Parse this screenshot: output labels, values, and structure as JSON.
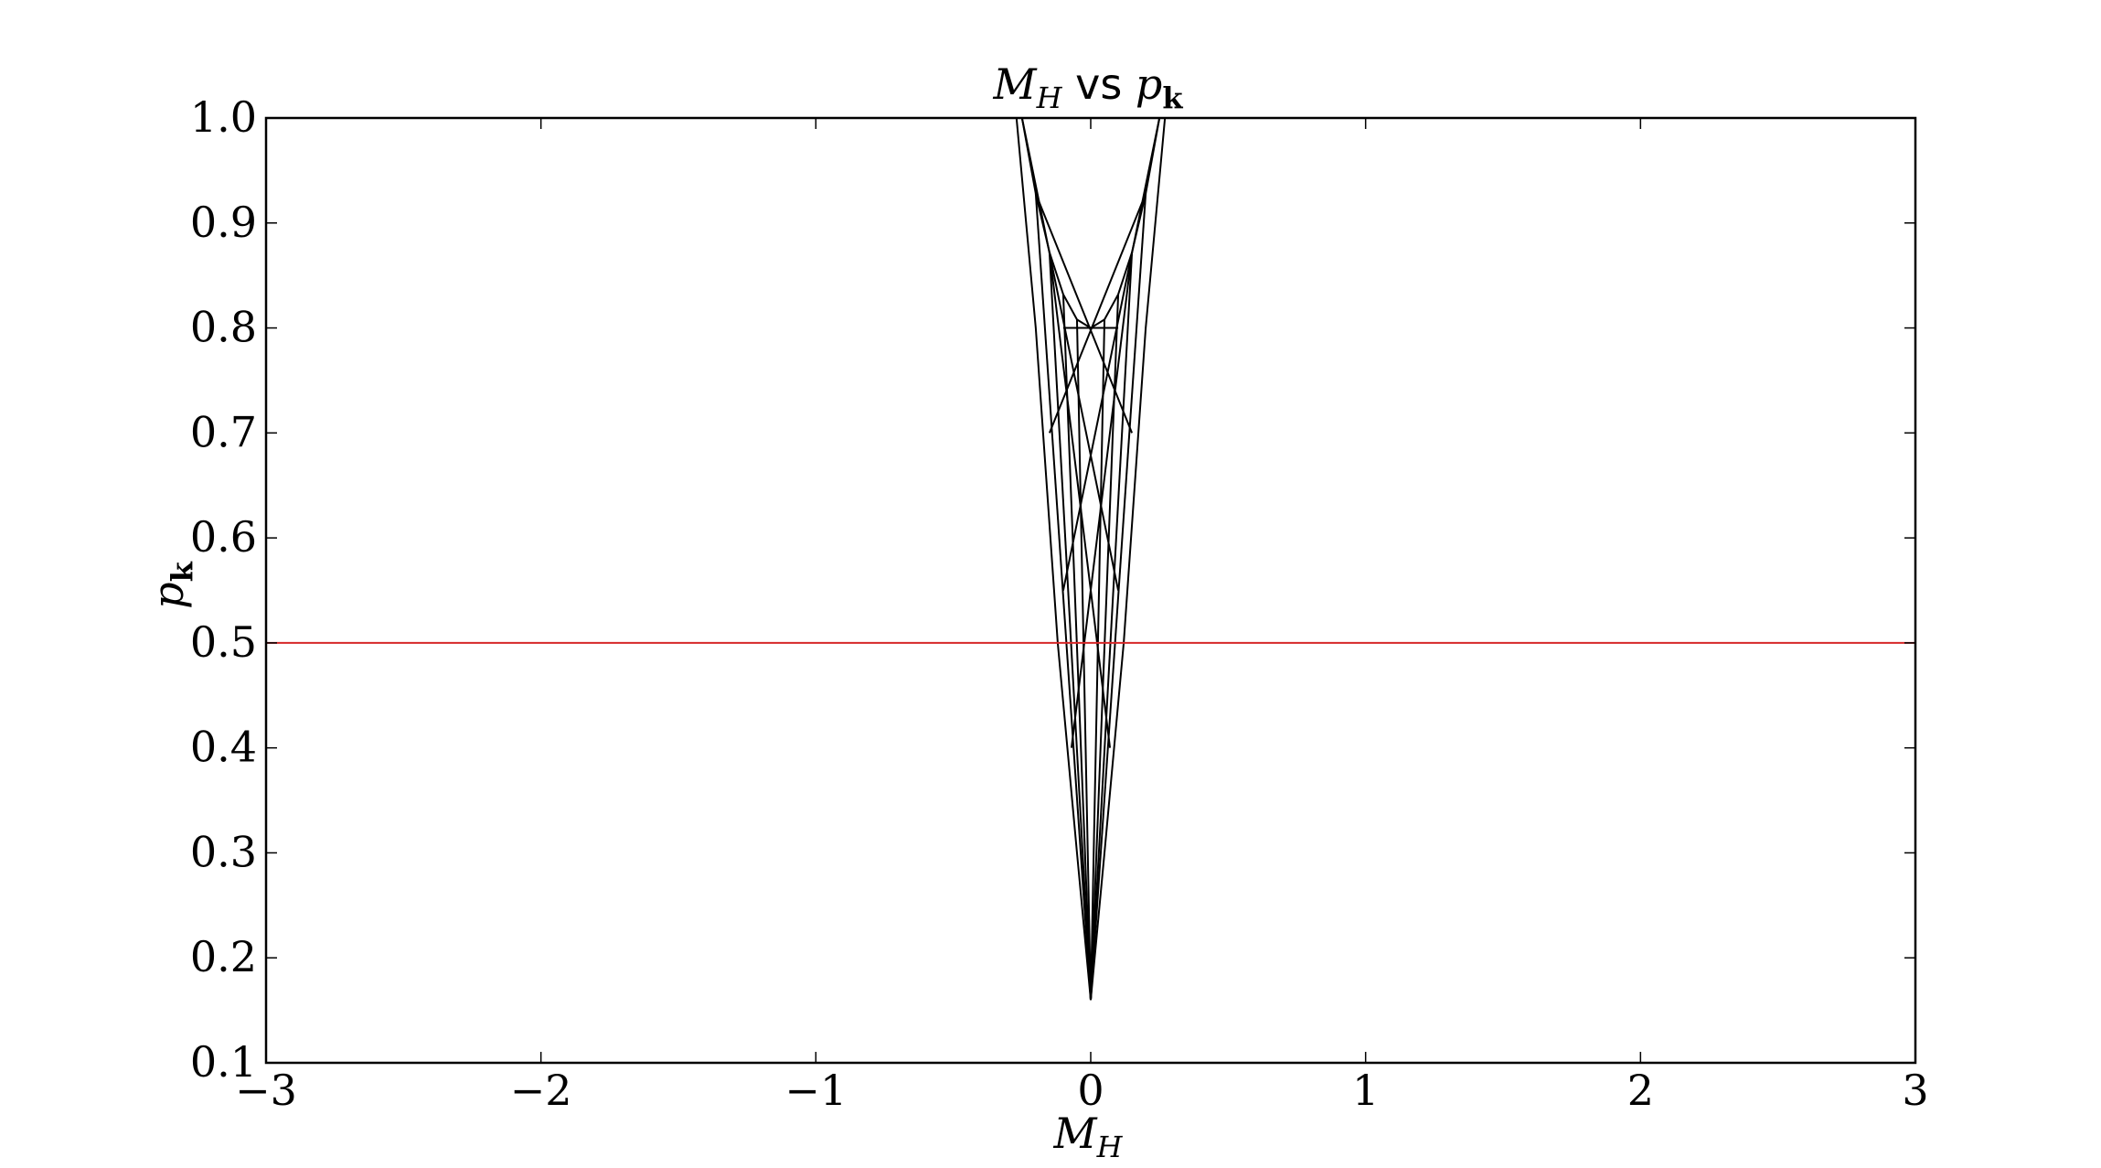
{
  "chart_data": {
    "type": "line",
    "title": [
      "M",
      "H",
      " vs ",
      "p",
      "k"
    ],
    "xlabel": [
      "M",
      "H"
    ],
    "ylabel": [
      "p",
      "k"
    ],
    "xlim": [
      -3,
      3
    ],
    "ylim": [
      0.1,
      1.0
    ],
    "xticks": [
      {
        "value": -3,
        "label": "−3"
      },
      {
        "value": -2,
        "label": "−2"
      },
      {
        "value": -1,
        "label": "−1"
      },
      0,
      1,
      2,
      3
    ],
    "yticks": [
      0.1,
      0.2,
      0.3,
      0.4,
      0.5,
      0.6,
      0.7,
      0.8,
      0.9,
      {
        "value": 1.0,
        "label": "1.0"
      }
    ],
    "series": [
      {
        "color": "#000000",
        "x": [
          -0.25,
          -0.2,
          -0.15,
          -0.1,
          -0.05,
          0,
          0.05,
          0.1,
          0.15,
          0.2,
          0.25
        ],
        "values": [
          1.0,
          0.928,
          0.872,
          0.832,
          0.808,
          0.8,
          0.808,
          0.832,
          0.872,
          0.928,
          1.0
        ]
      },
      {
        "color": "#000000",
        "x": [
          -0.27,
          -0.2,
          -0.12,
          -0.05,
          0
        ],
        "values": [
          1.0,
          0.8,
          0.5,
          0.3,
          0.16
        ]
      },
      {
        "color": "#000000",
        "x": [
          0.27,
          0.2,
          0.12,
          0.05,
          0
        ],
        "values": [
          1.0,
          0.8,
          0.5,
          0.3,
          0.16
        ]
      },
      {
        "color": "#000000",
        "x": [
          -0.2,
          0
        ],
        "values": [
          0.928,
          0.16
        ]
      },
      {
        "color": "#000000",
        "x": [
          -0.15,
          0
        ],
        "values": [
          0.872,
          0.16
        ]
      },
      {
        "color": "#000000",
        "x": [
          -0.1,
          0
        ],
        "values": [
          0.832,
          0.16
        ]
      },
      {
        "color": "#000000",
        "x": [
          -0.05,
          0
        ],
        "values": [
          0.808,
          0.16
        ]
      },
      {
        "color": "#000000",
        "x": [
          0.05,
          0
        ],
        "values": [
          0.808,
          0.16
        ]
      },
      {
        "color": "#000000",
        "x": [
          0.1,
          0
        ],
        "values": [
          0.832,
          0.16
        ]
      },
      {
        "color": "#000000",
        "x": [
          0.15,
          0
        ],
        "values": [
          0.872,
          0.16
        ]
      },
      {
        "color": "#000000",
        "x": [
          0.2,
          0
        ],
        "values": [
          0.928,
          0.16
        ]
      },
      {
        "color": "#000000",
        "x": [
          -0.1,
          0.1
        ],
        "values": [
          0.8,
          0.8
        ]
      },
      {
        "color": "#000000",
        "x": [
          -0.25,
          0.1
        ],
        "values": [
          1.0,
          0.55
        ]
      },
      {
        "color": "#000000",
        "x": [
          0.25,
          -0.1
        ],
        "values": [
          1.0,
          0.55
        ]
      },
      {
        "color": "#000000",
        "x": [
          -0.2,
          0.15
        ],
        "values": [
          0.928,
          0.7
        ]
      },
      {
        "color": "#000000",
        "x": [
          0.2,
          -0.15
        ],
        "values": [
          0.928,
          0.7
        ]
      },
      {
        "color": "#000000",
        "x": [
          -0.15,
          0.07
        ],
        "values": [
          0.872,
          0.4
        ]
      },
      {
        "color": "#000000",
        "x": [
          0.15,
          -0.07
        ],
        "values": [
          0.872,
          0.4
        ]
      },
      {
        "color": "#d62728",
        "x": [
          -3,
          3
        ],
        "values": [
          0.5,
          0.5
        ]
      }
    ]
  }
}
